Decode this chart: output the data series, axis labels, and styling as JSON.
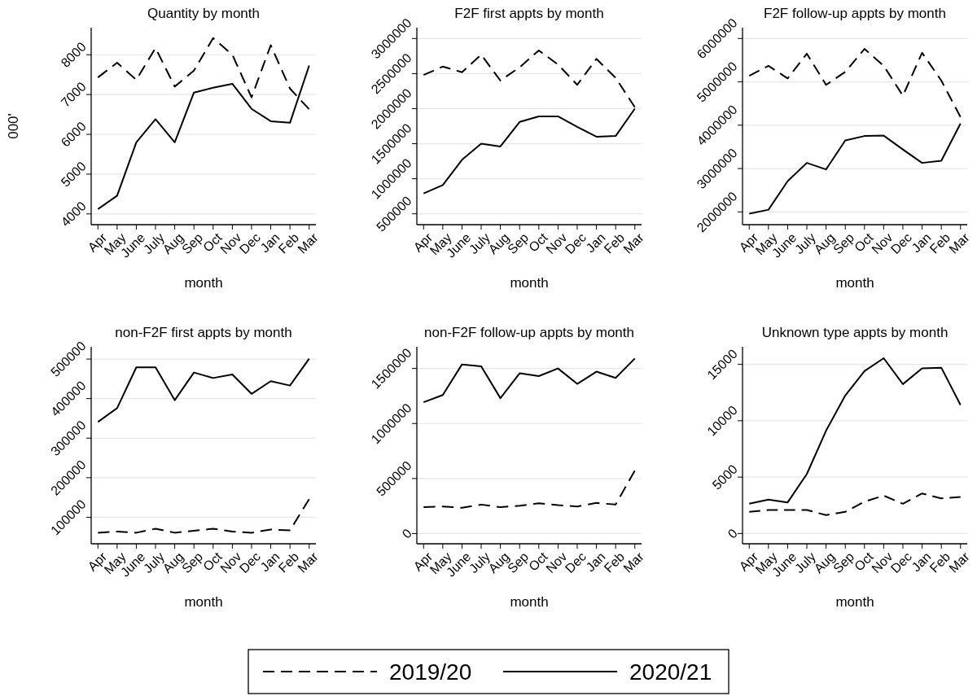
{
  "chart_data": [
    {
      "type": "line",
      "title": "Quantity by month",
      "xlabel": "month",
      "ylabel": "000'",
      "categories": [
        "Apr",
        "May",
        "June",
        "July",
        "Aug",
        "Sep",
        "Oct",
        "Nov",
        "Dec",
        "Jan",
        "Feb",
        "Mar"
      ],
      "ylim": [
        3730,
        8680
      ],
      "yticks": [
        4000,
        5000,
        6000,
        7000,
        8000
      ],
      "grid": "y",
      "legend": "bottom",
      "series": [
        {
          "name": "2019/20",
          "color": "#000000",
          "line_style": "dashed",
          "values": [
            7430,
            7800,
            7370,
            8170,
            7200,
            7600,
            8420,
            8000,
            6930,
            8240,
            7150,
            6630
          ]
        },
        {
          "name": "2020/21",
          "color": "#000000",
          "line_style": "solid",
          "values": [
            4120,
            4460,
            5800,
            6380,
            5800,
            7050,
            7170,
            7270,
            6640,
            6330,
            6290,
            7730
          ]
        }
      ]
    },
    {
      "type": "line",
      "title": "F2F first appts by month",
      "xlabel": "month",
      "categories": [
        "Apr",
        "May",
        "June",
        "July",
        "Aug",
        "Sep",
        "Oct",
        "Nov",
        "Dec",
        "Jan",
        "Feb",
        "Mar"
      ],
      "ylim": [
        345000,
        3155000
      ],
      "yticks": [
        500000,
        1000000,
        1500000,
        2000000,
        2500000,
        3000000
      ],
      "grid": "y",
      "series": [
        {
          "name": "2019/20",
          "color": "#000000",
          "line_style": "dashed",
          "values": [
            2480000,
            2600000,
            2520000,
            2770000,
            2400000,
            2590000,
            2830000,
            2630000,
            2340000,
            2710000,
            2440000,
            2020000
          ]
        },
        {
          "name": "2020/21",
          "color": "#000000",
          "line_style": "solid",
          "values": [
            790000,
            910000,
            1270000,
            1500000,
            1460000,
            1810000,
            1890000,
            1890000,
            1740000,
            1600000,
            1610000,
            2000000
          ]
        }
      ]
    },
    {
      "type": "line",
      "title": "F2F follow-up appts by month",
      "xlabel": "month",
      "categories": [
        "Apr",
        "May",
        "June",
        "July",
        "Aug",
        "Sep",
        "Oct",
        "Nov",
        "Dec",
        "Jan",
        "Feb",
        "Mar"
      ],
      "ylim": [
        1705000,
        6250000
      ],
      "yticks": [
        2000000,
        3000000,
        4000000,
        5000000,
        6000000
      ],
      "grid": "y",
      "series": [
        {
          "name": "2019/20",
          "color": "#000000",
          "line_style": "dashed",
          "values": [
            5140000,
            5370000,
            5080000,
            5650000,
            4930000,
            5230000,
            5760000,
            5370000,
            4680000,
            5670000,
            5030000,
            4190000
          ]
        },
        {
          "name": "2020/21",
          "color": "#000000",
          "line_style": "solid",
          "values": [
            1960000,
            2050000,
            2710000,
            3130000,
            2980000,
            3650000,
            3750000,
            3760000,
            3440000,
            3130000,
            3180000,
            4040000
          ]
        }
      ]
    },
    {
      "type": "line",
      "title": "non-F2F first appts by month",
      "xlabel": "month",
      "categories": [
        "Apr",
        "May",
        "June",
        "July",
        "Aug",
        "Sep",
        "Oct",
        "Nov",
        "Dec",
        "Jan",
        "Feb",
        "Mar"
      ],
      "ylim": [
        33000,
        531000
      ],
      "yticks": [
        100000,
        200000,
        300000,
        400000,
        500000
      ],
      "grid": "y",
      "series": [
        {
          "name": "2019/20",
          "color": "#000000",
          "line_style": "dashed",
          "values": [
            61000,
            64000,
            61000,
            71000,
            61000,
            66000,
            71000,
            64000,
            61000,
            69000,
            67000,
            146000
          ]
        },
        {
          "name": "2020/21",
          "color": "#000000",
          "line_style": "solid",
          "values": [
            341000,
            376000,
            479000,
            479000,
            396000,
            466000,
            452000,
            461000,
            412000,
            444000,
            433000,
            501000
          ]
        }
      ]
    },
    {
      "type": "line",
      "title": "non-F2F follow-up appts by month",
      "xlabel": "month",
      "categories": [
        "Apr",
        "May",
        "June",
        "July",
        "Aug",
        "Sep",
        "Oct",
        "Nov",
        "Dec",
        "Jan",
        "Feb",
        "Mar"
      ],
      "ylim": [
        -93000,
        1697000
      ],
      "yticks": [
        0,
        500000,
        1000000,
        1500000
      ],
      "grid": "y",
      "series": [
        {
          "name": "2019/20",
          "color": "#000000",
          "line_style": "dashed",
          "values": [
            239000,
            246000,
            234000,
            263000,
            239000,
            253000,
            275000,
            258000,
            246000,
            278000,
            263000,
            573000
          ]
        },
        {
          "name": "2020/21",
          "color": "#000000",
          "line_style": "solid",
          "values": [
            1193000,
            1259000,
            1537000,
            1520000,
            1230000,
            1456000,
            1431000,
            1500000,
            1360000,
            1471000,
            1414000,
            1591000
          ]
        }
      ]
    },
    {
      "type": "line",
      "title": "Unknown type appts by month",
      "xlabel": "month",
      "categories": [
        "Apr",
        "May",
        "June",
        "July",
        "Aug",
        "Sep",
        "Oct",
        "Nov",
        "Dec",
        "Jan",
        "Feb",
        "Mar"
      ],
      "ylim": [
        -910,
        16560
      ],
      "yticks": [
        0,
        5000,
        10000,
        15000
      ],
      "grid": "y",
      "series": [
        {
          "name": "2019/20",
          "color": "#000000",
          "line_style": "dashed",
          "values": [
            1920,
            2090,
            2090,
            2090,
            1630,
            1920,
            2830,
            3360,
            2640,
            3550,
            3120,
            3240
          ]
        },
        {
          "name": "2020/21",
          "color": "#000000",
          "line_style": "solid",
          "values": [
            2640,
            3000,
            2760,
            5280,
            9120,
            12240,
            14400,
            15550,
            13250,
            14640,
            14710,
            11400
          ]
        }
      ]
    }
  ]
}
